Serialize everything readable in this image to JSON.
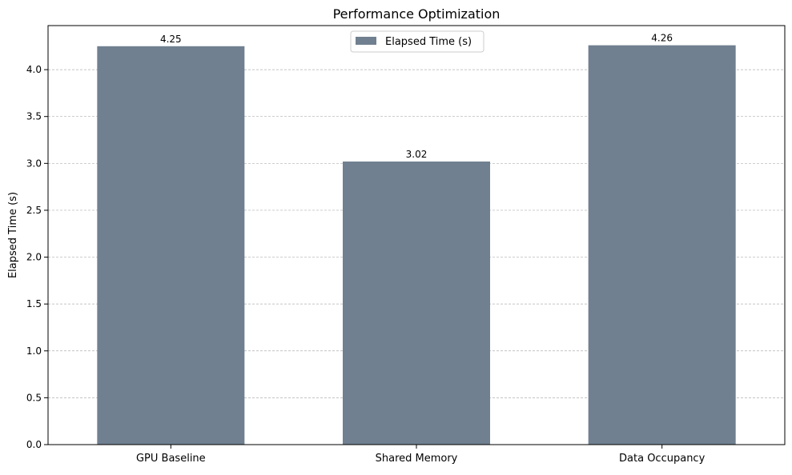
{
  "chart_data": {
    "type": "bar",
    "title": "Performance Optimization",
    "xlabel": "",
    "ylabel": "Elapsed Time (s)",
    "categories": [
      "GPU Baseline",
      "Shared Memory",
      "Data Occupancy"
    ],
    "series": [
      {
        "name": "Elapsed Time (s)",
        "values": [
          4.25,
          3.02,
          4.26
        ],
        "color": "#708090"
      }
    ],
    "data_labels": [
      "4.25",
      "3.02",
      "4.26"
    ],
    "ylim": [
      0,
      4.47
    ],
    "yticks": [
      0.0,
      0.5,
      1.0,
      1.5,
      2.0,
      2.5,
      3.0,
      3.5,
      4.0
    ],
    "ytick_labels": [
      "0.0",
      "0.5",
      "1.0",
      "1.5",
      "2.0",
      "2.5",
      "3.0",
      "3.5",
      "4.0"
    ],
    "grid": {
      "axis": "y",
      "style": "dashed",
      "color": "#b0b0b0"
    },
    "legend": {
      "position": "top-center"
    }
  }
}
